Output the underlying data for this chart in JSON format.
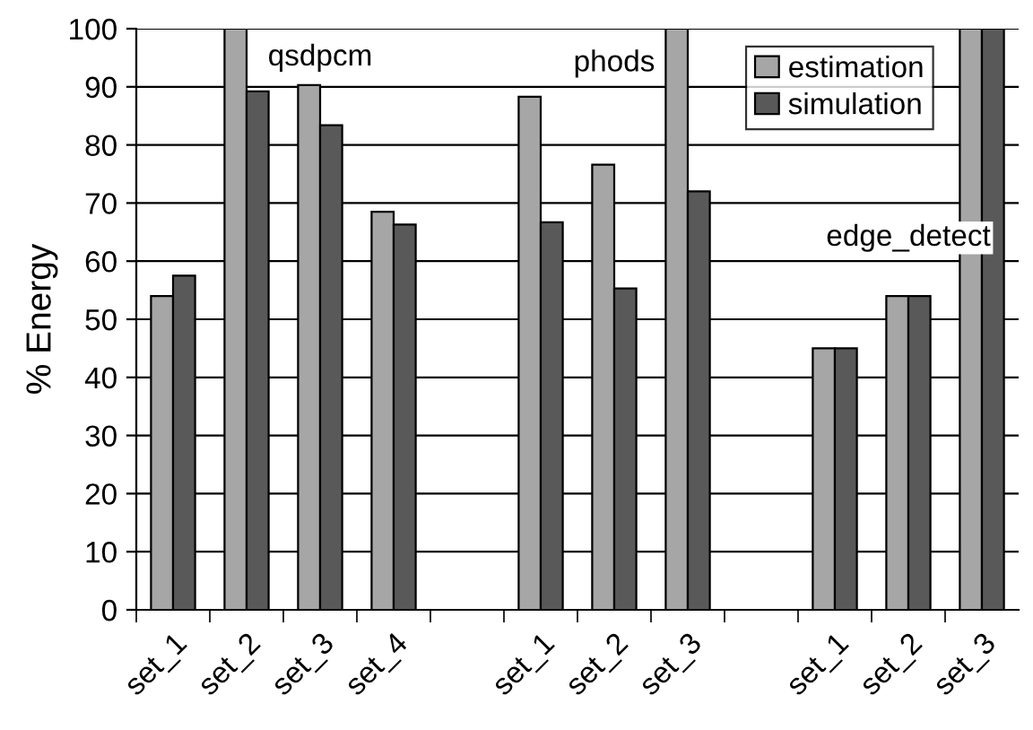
{
  "chart_data": {
    "type": "bar",
    "ylabel": "% Energy",
    "categories": [
      "set_1",
      "set_2",
      "set_3",
      "set_4",
      null,
      "set_1",
      "set_2",
      "set_3",
      null,
      "set_1",
      "set_2",
      "set_3"
    ],
    "series": [
      {
        "name": "estimation",
        "color": "#a6a6a6",
        "values": [
          54,
          100,
          90.3,
          68.5,
          null,
          88.3,
          76.6,
          100,
          null,
          45,
          54,
          100
        ]
      },
      {
        "name": "simulation",
        "color": "#595959",
        "values": [
          57.5,
          89.2,
          83.4,
          66.3,
          null,
          66.7,
          55.3,
          72,
          null,
          45,
          54,
          100
        ]
      }
    ],
    "ylim": [
      0,
      100
    ],
    "yticks": [
      0,
      10,
      20,
      30,
      40,
      50,
      60,
      70,
      80,
      90,
      100
    ],
    "grid": "y",
    "legend": "top right",
    "annotations": [
      "qsdpcm",
      "phods",
      "edge_detect"
    ]
  }
}
